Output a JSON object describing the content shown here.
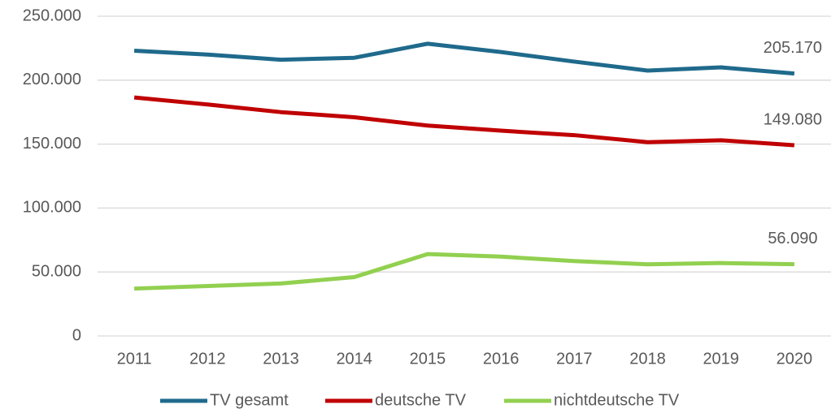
{
  "chart_data": {
    "type": "line",
    "categories": [
      "2011",
      "2012",
      "2013",
      "2014",
      "2015",
      "2016",
      "2017",
      "2018",
      "2019",
      "2020"
    ],
    "series": [
      {
        "name": "TV gesamt",
        "color": "#1f6a8c",
        "values": [
          223000,
          220000,
          216000,
          217500,
          228500,
          222000,
          214500,
          207500,
          210000,
          205170
        ],
        "value_labels": [
          null,
          null,
          null,
          null,
          null,
          null,
          null,
          null,
          null,
          "205.170"
        ]
      },
      {
        "name": "deutsche TV",
        "color": "#c00000",
        "values": [
          186500,
          181000,
          175000,
          171000,
          164500,
          160500,
          157000,
          151500,
          153000,
          149080
        ],
        "value_labels": [
          null,
          null,
          null,
          null,
          null,
          null,
          null,
          null,
          null,
          "149.080"
        ]
      },
      {
        "name": "nichtdeutsche TV",
        "color": "#92d050",
        "values": [
          37000,
          39000,
          41000,
          46000,
          64000,
          62000,
          58500,
          56000,
          57000,
          56090
        ],
        "value_labels": [
          null,
          null,
          null,
          null,
          null,
          null,
          null,
          null,
          null,
          "56.090"
        ]
      }
    ],
    "ylim": [
      0,
      250000
    ],
    "yticks": [
      0,
      {
        "value": 50000,
        "label": "50.000"
      },
      {
        "value": 100000,
        "label": "100.000"
      },
      {
        "value": 150000,
        "label": "150.000"
      },
      {
        "value": 200000,
        "label": "200.000"
      },
      {
        "value": 250000,
        "label": "250.000"
      }
    ],
    "grid": true,
    "legend": "bottom"
  }
}
